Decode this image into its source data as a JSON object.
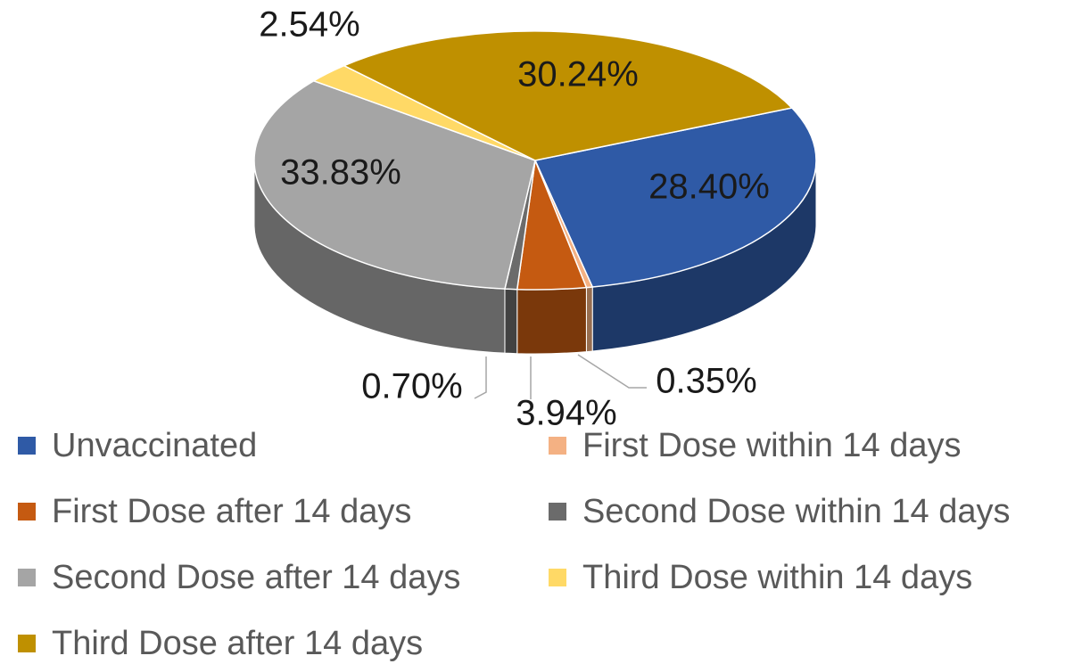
{
  "chart_data": {
    "type": "pie3d",
    "categories": [
      "Unvaccinated",
      "First Dose within 14 days",
      "First Dose after 14 days",
      "Second Dose within 14 days",
      "Second Dose after 14 days",
      "Third Dose within 14 days",
      "Third Dose after 14 days"
    ],
    "values": [
      28.4,
      0.35,
      3.94,
      0.7,
      33.83,
      2.54,
      30.24
    ],
    "value_labels": [
      "28.40%",
      "0.35%",
      "3.94%",
      "0.70%",
      "33.83%",
      "2.54%",
      "30.24%"
    ],
    "colors": [
      "#2f5aa6",
      "#f4b183",
      "#c55a11",
      "#6b6b6b",
      "#a5a5a5",
      "#ffd966",
      "#bf9000"
    ],
    "legend": "bottom"
  }
}
